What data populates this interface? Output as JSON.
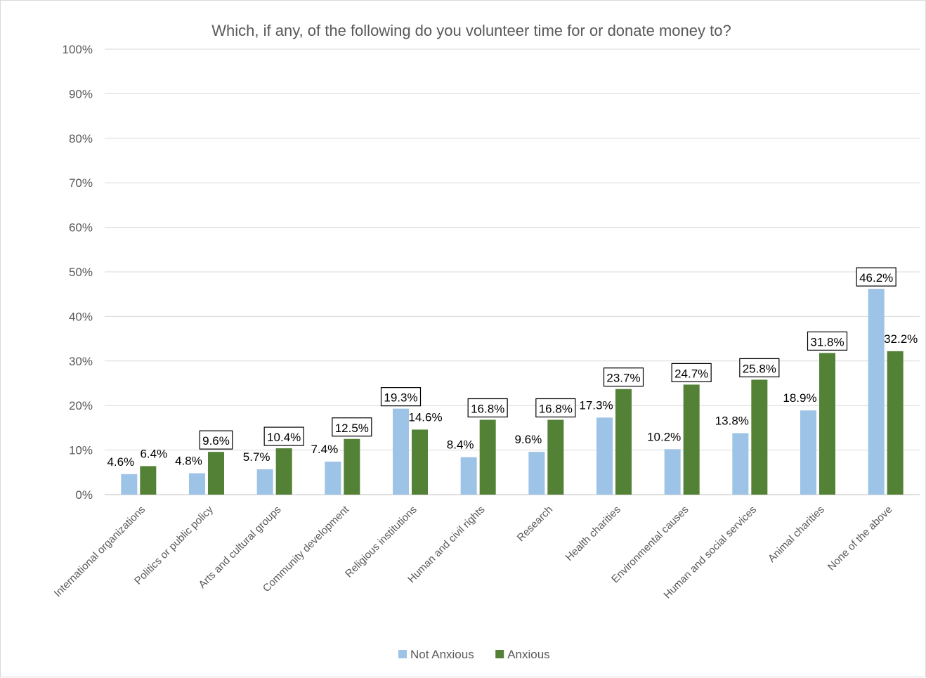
{
  "chart_data": {
    "type": "bar",
    "title": "Which, if any, of the following do you volunteer time for or donate money to?",
    "xlabel": "",
    "ylabel": "",
    "ylim": [
      0,
      100
    ],
    "yticks": [
      "0%",
      "10%",
      "20%",
      "30%",
      "40%",
      "50%",
      "60%",
      "70%",
      "80%",
      "90%",
      "100%"
    ],
    "grid": true,
    "legend_position": "bottom",
    "categories": [
      "International organizations",
      "Politics or public policy",
      "Arts and cultural groups",
      "Community development",
      "Religious institutions",
      "Human and civil rights",
      "Research",
      "Health charities",
      "Environmental causes",
      "Human and social services",
      "Animal charities",
      "None of the above"
    ],
    "series": [
      {
        "name": "Not Anxious",
        "color": "#9dc3e6",
        "values": [
          4.6,
          4.8,
          5.7,
          7.4,
          19.3,
          8.4,
          9.6,
          17.3,
          10.2,
          13.8,
          18.9,
          46.2
        ],
        "labels": [
          "4.6%",
          "4.8%",
          "5.7%",
          "7.4%",
          "19.3%",
          "8.4%",
          "9.6%",
          "17.3%",
          "10.2%",
          "13.8%",
          "18.9%",
          "46.2%"
        ],
        "boxed": [
          false,
          false,
          false,
          false,
          true,
          false,
          false,
          false,
          false,
          false,
          false,
          true
        ]
      },
      {
        "name": "Anxious",
        "color": "#538135",
        "values": [
          6.4,
          9.6,
          10.4,
          12.5,
          14.6,
          16.8,
          16.8,
          23.7,
          24.7,
          25.8,
          31.8,
          32.2
        ],
        "labels": [
          "6.4%",
          "9.6%",
          "10.4%",
          "12.5%",
          "14.6%",
          "16.8%",
          "16.8%",
          "23.7%",
          "24.7%",
          "25.8%",
          "31.8%",
          "32.2%"
        ],
        "boxed": [
          false,
          true,
          true,
          true,
          false,
          true,
          true,
          true,
          true,
          true,
          true,
          false
        ]
      }
    ]
  }
}
